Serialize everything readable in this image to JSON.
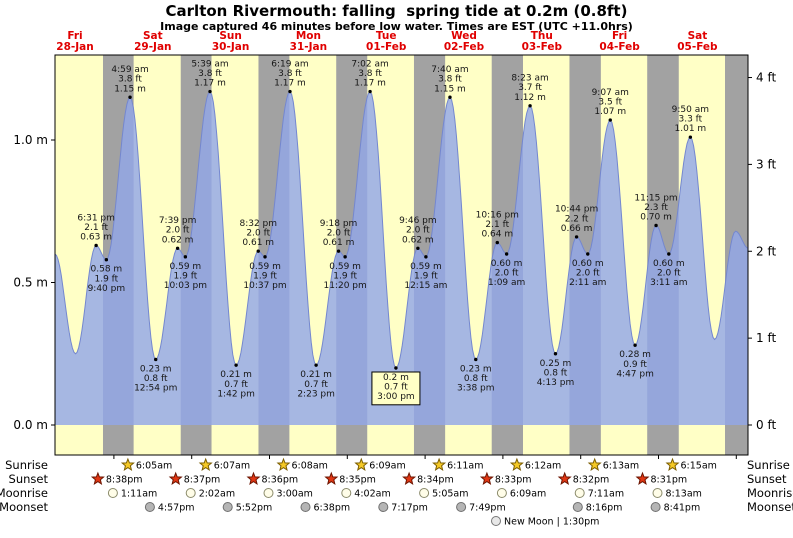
{
  "colors": {
    "day_bg": "#ffffc6",
    "night_bg": "#a2a2a2",
    "tide_fill": "#93a7e8",
    "tide_stroke": "#7487cf",
    "date_label": "#e00000",
    "frame": "#000000",
    "sunrise_star": "#f5c926",
    "sunset_star": "#e03613",
    "moonrise_fill": "#fffde8",
    "moonset_fill": "#b5b5b5",
    "new_moon_fill": "#e8e8e8"
  },
  "icons": {
    "sunrise": "sun-star-icon",
    "sunset": "sunset-star-icon",
    "moonrise": "moonrise-moon-icon",
    "moonset": "moonset-moon-icon",
    "new_moon": "new-moon-icon"
  },
  "chart_data": {
    "type": "area",
    "title": "Carlton Rivermouth: falling  spring tide at 0.2m (0.8ft)",
    "subtitle": "Image captured 46 minutes before low water. Times are EST (UTC +11.0hrs)",
    "t_units": "hours since Fri 28-Jan 00:00 local (EST UTC+11.0)",
    "ylim_m": [
      0,
      1.3
    ],
    "ylim_ft": [
      0,
      4.26
    ],
    "grid": false,
    "y_ticks_m": [
      {
        "v": 0.0,
        "label": "0.0 m"
      },
      {
        "v": 0.5,
        "label": "0.5 m"
      },
      {
        "v": 1.0,
        "label": "1.0 m"
      }
    ],
    "y_ticks_ft": [
      {
        "v": 0,
        "label": "0 ft"
      },
      {
        "v": 1,
        "label": "1 ft"
      },
      {
        "v": 2,
        "label": "2 ft"
      },
      {
        "v": 3,
        "label": "3 ft"
      },
      {
        "v": 4,
        "label": "4 ft"
      }
    ],
    "days": [
      {
        "dow": "Fri",
        "date": "28-Jan"
      },
      {
        "dow": "Sat",
        "date": "29-Jan"
      },
      {
        "dow": "Sun",
        "date": "30-Jan"
      },
      {
        "dow": "Mon",
        "date": "31-Jan"
      },
      {
        "dow": "Tue",
        "date": "01-Feb"
      },
      {
        "dow": "Wed",
        "date": "02-Feb"
      },
      {
        "dow": "Thu",
        "date": "03-Feb"
      },
      {
        "dow": "Fri",
        "date": "04-Feb"
      },
      {
        "dow": "Sat",
        "date": "05-Feb"
      }
    ],
    "tide_events": [
      {
        "t": 5.8,
        "m": 0.6
      },
      {
        "t": 12.17,
        "m": 0.25
      },
      {
        "t": 18.52,
        "m": 0.63,
        "pos": "above",
        "lines": [
          "6:31 pm",
          "2.1 ft",
          "0.63 m"
        ]
      },
      {
        "t": 21.67,
        "m": 0.58,
        "pos": "below",
        "lines": [
          "0.58 m",
          "1.9 ft",
          "9:40 pm"
        ]
      },
      {
        "t": 28.98,
        "m": 1.15,
        "pos": "above",
        "lines": [
          "4:59 am",
          "3.8 ft",
          "1.15 m"
        ]
      },
      {
        "t": 36.9,
        "m": 0.23,
        "pos": "below",
        "lines": [
          "0.23 m",
          "0.8 ft",
          "12:54 pm"
        ]
      },
      {
        "t": 43.65,
        "m": 0.62,
        "pos": "above",
        "lines": [
          "7:39 pm",
          "2.0 ft",
          "0.62 m"
        ]
      },
      {
        "t": 46.05,
        "m": 0.59,
        "pos": "below",
        "lines": [
          "0.59 m",
          "1.9 ft",
          "10:03 pm"
        ]
      },
      {
        "t": 53.65,
        "m": 1.17,
        "pos": "above",
        "lines": [
          "5:39 am",
          "3.8 ft",
          "1.17 m"
        ]
      },
      {
        "t": 61.7,
        "m": 0.21,
        "pos": "below",
        "lines": [
          "0.21 m",
          "0.7 ft",
          "1:42 pm"
        ]
      },
      {
        "t": 68.53,
        "m": 0.61,
        "pos": "above",
        "lines": [
          "8:32 pm",
          "2.0 ft",
          "0.61 m"
        ]
      },
      {
        "t": 70.62,
        "m": 0.59,
        "pos": "below",
        "lines": [
          "0.59 m",
          "1.9 ft",
          "10:37 pm"
        ]
      },
      {
        "t": 78.32,
        "m": 1.17,
        "pos": "above",
        "lines": [
          "6:19 am",
          "3.8 ft",
          "1.17 m"
        ]
      },
      {
        "t": 86.38,
        "m": 0.21,
        "pos": "below",
        "lines": [
          "0.21 m",
          "0.7 ft",
          "2:23 pm"
        ]
      },
      {
        "t": 93.3,
        "m": 0.61,
        "pos": "above",
        "lines": [
          "9:18 pm",
          "2.0 ft",
          "0.61 m"
        ]
      },
      {
        "t": 95.33,
        "m": 0.59,
        "pos": "below",
        "lines": [
          "0.59 m",
          "1.9 ft",
          "11:20 pm"
        ]
      },
      {
        "t": 103.03,
        "m": 1.17,
        "pos": "above",
        "lines": [
          "7:02 am",
          "3.8 ft",
          "1.17 m"
        ]
      },
      {
        "t": 111.0,
        "m": 0.2,
        "pos": "below",
        "boxed": true,
        "lines": [
          "0.2 m",
          "0.7 ft",
          "3:00 pm"
        ]
      },
      {
        "t": 117.77,
        "m": 0.62,
        "pos": "above",
        "lines": [
          "9:46 pm",
          "2.0 ft",
          "0.62 m"
        ]
      },
      {
        "t": 120.25,
        "m": 0.59,
        "pos": "below",
        "lines": [
          "0.59 m",
          "1.9 ft",
          "12:15 am"
        ]
      },
      {
        "t": 127.67,
        "m": 1.15,
        "pos": "above",
        "lines": [
          "7:40 am",
          "3.8 ft",
          "1.15 m"
        ]
      },
      {
        "t": 135.63,
        "m": 0.23,
        "pos": "below",
        "lines": [
          "0.23 m",
          "0.8 ft",
          "3:38 pm"
        ]
      },
      {
        "t": 142.27,
        "m": 0.64,
        "pos": "above",
        "lines": [
          "10:16 pm",
          "2.1 ft",
          "0.64 m"
        ]
      },
      {
        "t": 145.15,
        "m": 0.6,
        "pos": "below",
        "lines": [
          "0.60 m",
          "2.0 ft",
          "1:09 am"
        ]
      },
      {
        "t": 152.38,
        "m": 1.12,
        "pos": "above",
        "lines": [
          "8:23 am",
          "3.7 ft",
          "1.12 m"
        ]
      },
      {
        "t": 160.22,
        "m": 0.25,
        "pos": "below",
        "lines": [
          "0.25 m",
          "0.8 ft",
          "4:13 pm"
        ]
      },
      {
        "t": 166.73,
        "m": 0.66,
        "pos": "above",
        "lines": [
          "10:44 pm",
          "2.2 ft",
          "0.66 m"
        ]
      },
      {
        "t": 170.18,
        "m": 0.6,
        "pos": "below",
        "lines": [
          "0.60 m",
          "2.0 ft",
          "2:11 am"
        ]
      },
      {
        "t": 177.12,
        "m": 1.07,
        "pos": "above",
        "lines": [
          "9:07 am",
          "3.5 ft",
          "1.07 m"
        ]
      },
      {
        "t": 184.78,
        "m": 0.28,
        "pos": "below",
        "lines": [
          "0.28 m",
          "0.9 ft",
          "4:47 pm"
        ]
      },
      {
        "t": 191.25,
        "m": 0.7,
        "pos": "above",
        "lines": [
          "11:15 pm",
          "2.3 ft",
          "0.70 m"
        ]
      },
      {
        "t": 195.18,
        "m": 0.6,
        "pos": "below",
        "lines": [
          "0.60 m",
          "2.0 ft",
          "3:11 am"
        ]
      },
      {
        "t": 201.83,
        "m": 1.01,
        "pos": "above",
        "lines": [
          "9:50 am",
          "3.3 ft",
          "1.01 m"
        ]
      },
      {
        "t": 209.3,
        "m": 0.3
      },
      {
        "t": 215.8,
        "m": 0.68
      },
      {
        "t": 219.7,
        "m": 0.62
      }
    ]
  },
  "astro": {
    "row_labels": [
      "Sunrise",
      "Sunset",
      "Moonrise",
      "Moonset"
    ],
    "sunrise": [
      "6:05am",
      "6:07am",
      "6:08am",
      "6:09am",
      "6:11am",
      "6:12am",
      "6:13am",
      "6:15am"
    ],
    "sunset": [
      "8:38pm",
      "8:37pm",
      "8:36pm",
      "8:35pm",
      "8:34pm",
      "8:33pm",
      "8:32pm",
      "8:31pm"
    ],
    "moonrise": [
      "1:11am",
      "2:02am",
      "3:00am",
      "4:02am",
      "5:05am",
      "6:09am",
      "7:11am",
      "8:13am"
    ],
    "moonset": [
      "4:57pm",
      "5:52pm",
      "6:38pm",
      "7:17pm",
      "7:49pm",
      "8:16pm",
      "8:41pm"
    ],
    "new_moon": "New Moon | 1:30pm"
  }
}
